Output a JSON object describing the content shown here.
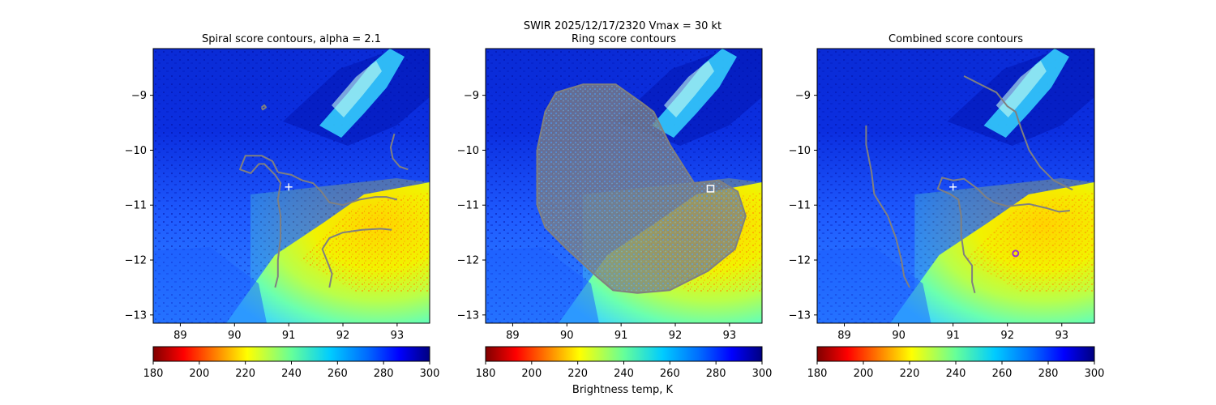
{
  "figure": {
    "suptitle_line1": "SWIR  2025/12/17/2320    Vmax = 30 kt",
    "colorbar_label": "Brightness temp, K"
  },
  "colors": {
    "contour": "#808080",
    "center_marker": "#ffffff",
    "max_marker": "#9b2fd6"
  },
  "chart_data": [
    {
      "type": "heatmap",
      "title": "Spiral score contours, alpha =  2.1",
      "x_ticks": [
        89,
        90,
        91,
        92,
        93
      ],
      "y_ticks": [
        -9,
        -10,
        -11,
        -12,
        -13
      ],
      "xlim": [
        88.5,
        93.6
      ],
      "ylim": [
        -13.15,
        -8.15
      ],
      "colorbar": {
        "colormap": "jet_r",
        "range": [
          180,
          300
        ],
        "ticks": [
          180,
          200,
          220,
          240,
          260,
          280,
          300
        ]
      },
      "center": {
        "x": 91.0,
        "y": -10.67,
        "marker": "plus"
      },
      "contours": [
        [
          [
            90.5,
            -9.22
          ],
          [
            90.55,
            -9.18
          ],
          [
            90.58,
            -9.22
          ],
          [
            90.52,
            -9.26
          ],
          [
            90.5,
            -9.22
          ]
        ],
        [
          [
            92.95,
            -9.7
          ],
          [
            92.88,
            -9.95
          ],
          [
            92.92,
            -10.15
          ],
          [
            93.05,
            -10.3
          ],
          [
            93.2,
            -10.35
          ]
        ],
        [
          [
            90.8,
            -10.4
          ],
          [
            90.7,
            -10.2
          ],
          [
            90.5,
            -10.1
          ],
          [
            90.2,
            -10.1
          ],
          [
            90.1,
            -10.35
          ],
          [
            90.3,
            -10.42
          ],
          [
            90.45,
            -10.25
          ],
          [
            90.55,
            -10.25
          ],
          [
            90.75,
            -10.45
          ],
          [
            90.85,
            -10.6
          ],
          [
            90.8,
            -10.9
          ],
          [
            90.85,
            -11.2
          ],
          [
            90.85,
            -11.6
          ],
          [
            90.8,
            -12.0
          ],
          [
            90.8,
            -12.3
          ],
          [
            90.75,
            -12.5
          ]
        ],
        [
          [
            90.8,
            -10.4
          ],
          [
            91.05,
            -10.45
          ],
          [
            91.25,
            -10.55
          ],
          [
            91.45,
            -10.6
          ],
          [
            91.6,
            -10.75
          ],
          [
            91.75,
            -10.95
          ],
          [
            92.0,
            -11.0
          ],
          [
            92.3,
            -10.9
          ],
          [
            92.6,
            -10.85
          ],
          [
            92.8,
            -10.85
          ],
          [
            93.0,
            -10.9
          ]
        ],
        [
          [
            91.75,
            -12.5
          ],
          [
            91.8,
            -12.25
          ],
          [
            91.7,
            -12.0
          ],
          [
            91.62,
            -11.8
          ],
          [
            91.75,
            -11.6
          ],
          [
            92.0,
            -11.5
          ],
          [
            92.35,
            -11.45
          ],
          [
            92.7,
            -11.43
          ],
          [
            92.9,
            -11.45
          ]
        ]
      ]
    },
    {
      "type": "heatmap",
      "title": "Ring score contours",
      "x_ticks": [
        89,
        90,
        91,
        92,
        93
      ],
      "y_ticks": [
        -9,
        -10,
        -11,
        -12,
        -13
      ],
      "xlim": [
        88.5,
        93.6
      ],
      "ylim": [
        -13.15,
        -8.15
      ],
      "colorbar": {
        "colormap": "jet_r",
        "range": [
          180,
          300
        ],
        "ticks": [
          180,
          200,
          220,
          240,
          260,
          280,
          300
        ]
      },
      "center": {
        "x": 92.65,
        "y": -10.7,
        "marker": "square"
      },
      "contour_region": [
        [
          89.8,
          -8.95
        ],
        [
          90.3,
          -8.8
        ],
        [
          90.9,
          -8.8
        ],
        [
          91.4,
          -9.15
        ],
        [
          91.6,
          -9.3
        ],
        [
          91.9,
          -9.9
        ],
        [
          92.35,
          -10.6
        ],
        [
          92.8,
          -10.55
        ],
        [
          93.15,
          -10.75
        ],
        [
          93.3,
          -11.2
        ],
        [
          93.1,
          -11.8
        ],
        [
          92.6,
          -12.2
        ],
        [
          91.9,
          -12.55
        ],
        [
          91.3,
          -12.6
        ],
        [
          90.85,
          -12.55
        ],
        [
          90.55,
          -12.3
        ],
        [
          90.0,
          -11.8
        ],
        [
          89.6,
          -11.4
        ],
        [
          89.45,
          -11.0
        ],
        [
          89.45,
          -10.0
        ],
        [
          89.6,
          -9.3
        ]
      ]
    },
    {
      "type": "heatmap",
      "title": "Combined score contours",
      "x_ticks": [
        89,
        90,
        91,
        92,
        93
      ],
      "y_ticks": [
        -9,
        -10,
        -11,
        -12,
        -13
      ],
      "xlim": [
        88.5,
        93.6
      ],
      "ylim": [
        -13.15,
        -8.15
      ],
      "colorbar": {
        "colormap": "jet_r",
        "range": [
          180,
          300
        ],
        "ticks": [
          180,
          200,
          220,
          240,
          260,
          280,
          300
        ]
      },
      "center": {
        "x": 91.0,
        "y": -10.67,
        "marker": "plus"
      },
      "max_point": {
        "x": 92.15,
        "y": -11.88,
        "marker": "circle"
      },
      "contours": [
        [
          [
            89.4,
            -9.55
          ],
          [
            89.4,
            -9.9
          ],
          [
            89.5,
            -10.4
          ],
          [
            89.55,
            -10.8
          ],
          [
            89.8,
            -11.2
          ],
          [
            89.95,
            -11.6
          ],
          [
            90.05,
            -12.0
          ],
          [
            90.1,
            -12.3
          ],
          [
            90.2,
            -12.5
          ]
        ],
        [
          [
            91.2,
            -8.65
          ],
          [
            91.5,
            -8.8
          ],
          [
            91.8,
            -8.95
          ],
          [
            92.0,
            -9.2
          ],
          [
            92.15,
            -9.3
          ],
          [
            92.25,
            -9.6
          ],
          [
            92.4,
            -10.0
          ],
          [
            92.6,
            -10.3
          ],
          [
            92.85,
            -10.55
          ],
          [
            93.05,
            -10.65
          ],
          [
            93.2,
            -10.72
          ]
        ],
        [
          [
            91.0,
            -10.55
          ],
          [
            90.8,
            -10.5
          ],
          [
            90.72,
            -10.7
          ],
          [
            90.95,
            -10.8
          ],
          [
            91.1,
            -10.9
          ],
          [
            91.15,
            -11.2
          ],
          [
            91.15,
            -11.55
          ],
          [
            91.2,
            -11.9
          ],
          [
            91.35,
            -12.1
          ],
          [
            91.35,
            -12.4
          ],
          [
            91.4,
            -12.6
          ]
        ],
        [
          [
            91.0,
            -10.55
          ],
          [
            91.2,
            -10.52
          ],
          [
            91.45,
            -10.7
          ],
          [
            91.6,
            -10.85
          ],
          [
            91.75,
            -10.95
          ],
          [
            92.0,
            -11.02
          ],
          [
            92.4,
            -10.98
          ],
          [
            92.7,
            -11.05
          ],
          [
            92.95,
            -11.12
          ],
          [
            93.15,
            -11.1
          ]
        ]
      ]
    }
  ]
}
